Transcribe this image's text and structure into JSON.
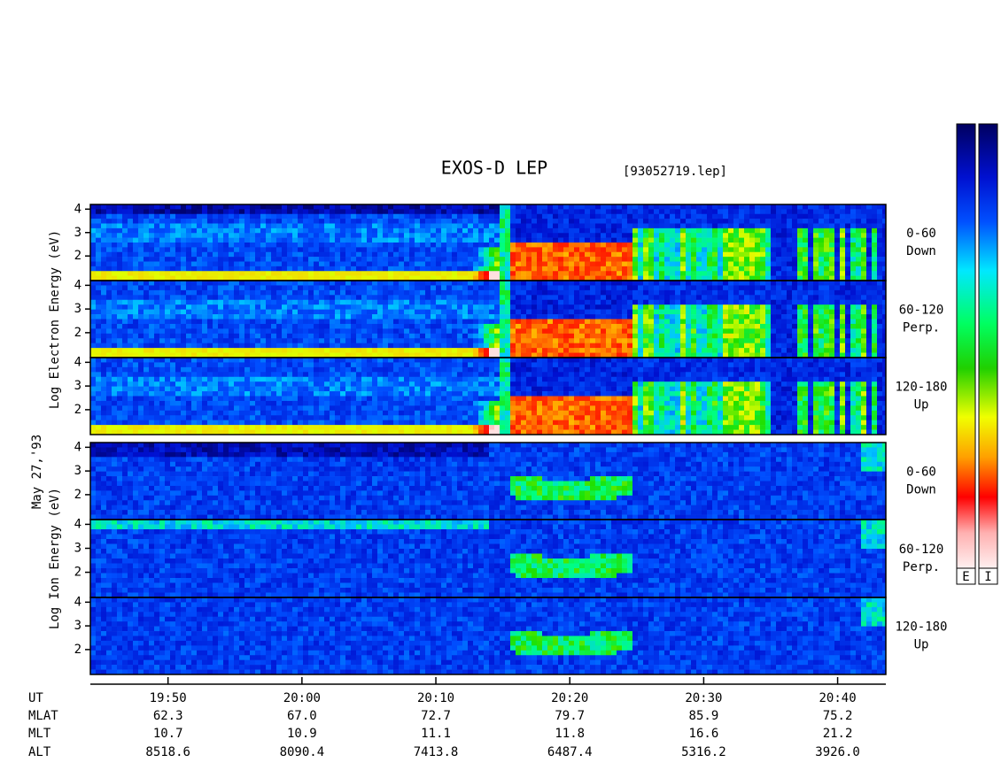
{
  "title": "EXOS-D LEP",
  "file": "[93052719.lep]",
  "date": "May 27,'93",
  "electron_axis_label": "Log  Electron  Energy (eV)",
  "ion_axis_label": "Log  Ion  Energy (eV)",
  "colorbar_labels": [
    "E",
    "I"
  ],
  "chart_data": {
    "type": "spectrogram",
    "ylim": [
      0.95,
      4.2
    ],
    "yticks": [
      2,
      3,
      4
    ],
    "xlim": [
      44.2,
      103.6
    ],
    "xticks": [
      {
        "value": 50,
        "label": "19:50"
      },
      {
        "value": 60,
        "label": "20:00"
      },
      {
        "value": 70,
        "label": "20:10"
      },
      {
        "value": 80,
        "label": "20:20"
      },
      {
        "value": 90,
        "label": "20:30"
      },
      {
        "value": 100,
        "label": "20:40"
      }
    ],
    "panels": [
      {
        "label": "0-60",
        "sublabel": "Down"
      },
      {
        "label": "60-120",
        "sublabel": "Perp."
      },
      {
        "label": "120-180",
        "sublabel": "Up"
      },
      {
        "label": "0-60",
        "sublabel": "Down"
      },
      {
        "label": "60-120",
        "sublabel": "Perp."
      },
      {
        "label": "120-180",
        "sublabel": "Up"
      }
    ]
  },
  "orbit_table": {
    "row_names": [
      "UT",
      "MLAT",
      "MLT",
      "ALT"
    ],
    "rows": [
      [
        "62.3",
        "67.0",
        "72.7",
        "79.7",
        "85.9",
        "75.2"
      ],
      [
        "10.7",
        "10.9",
        "11.1",
        "11.8",
        "16.6",
        "21.2"
      ],
      [
        "8518.6",
        "8090.4",
        "7413.8",
        "6487.4",
        "5316.2",
        "3926.0"
      ]
    ]
  }
}
